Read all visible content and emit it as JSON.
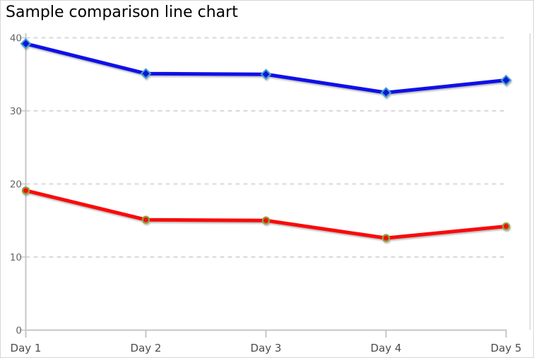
{
  "title": "Sample comparison line chart",
  "chart_data": {
    "type": "line",
    "title": "Sample comparison line chart",
    "categories": [
      "Day 1",
      "Day 2",
      "Day 3",
      "Day 4",
      "Day 5"
    ],
    "series": [
      {
        "id": "blue",
        "color": "#0f10e8",
        "marker": "diamond",
        "marker_fill": "#0b16d8",
        "marker_stroke": "#3fa0d0",
        "values": [
          39.2,
          35.1,
          35.0,
          32.5,
          34.2
        ]
      },
      {
        "id": "red",
        "color": "#fa0a0a",
        "marker": "circle",
        "marker_fill": "#ee1111",
        "marker_stroke": "#93a33b",
        "values": [
          19.1,
          15.1,
          15.0,
          12.6,
          14.2
        ]
      }
    ],
    "xlabel": "",
    "ylabel": "",
    "ylim": [
      0,
      40
    ],
    "yticks": [
      0,
      10,
      20,
      30,
      40
    ],
    "grid": "dashed-horizontal",
    "legend": "none",
    "axis_colors": {
      "grid": "#d9d9d9",
      "axis": "#c6c6c6",
      "tick_label": "#666666",
      "category_label": "#4d4d4d"
    }
  }
}
